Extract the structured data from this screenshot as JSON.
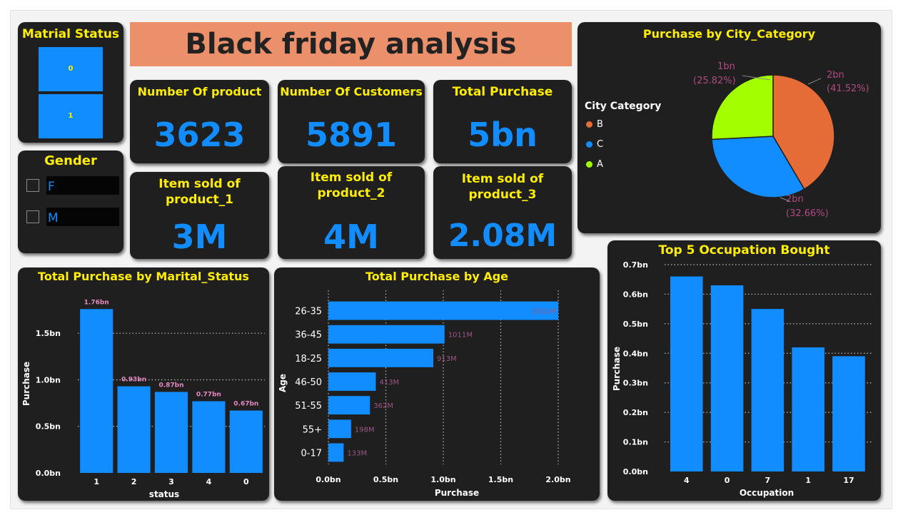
{
  "title": "Black friday analysis",
  "marital_slicer": {
    "title": "Matrial Status",
    "options": [
      "0",
      "1"
    ]
  },
  "gender_slicer": {
    "title": "Gender",
    "options": [
      "F",
      "M"
    ]
  },
  "kpis": [
    {
      "label": "Number Of product",
      "value": "3623"
    },
    {
      "label": "Number Of Customers",
      "value": "5891"
    },
    {
      "label": "Total Purchase",
      "value": "5bn"
    },
    {
      "label": "Item sold of\nproduct_1",
      "value": "3M"
    },
    {
      "label": "Item sold of\nproduct_2",
      "value": "4M"
    },
    {
      "label": "Item sold of\nproduct_3",
      "value": "2.08M"
    }
  ],
  "colors": {
    "accent": "#118dff",
    "title": "#ffee00",
    "card_bg": "#1f1f1f",
    "banner": "#ec8f6b",
    "pie_b": "#e66c37",
    "pie_c": "#118dff",
    "pie_a": "#a3ff00",
    "pie_label": "#b04a83"
  },
  "pie_chart": {
    "title": "Purchase by City_Category",
    "legend_title": "City Category",
    "chart_data": {
      "type": "pie",
      "categories": [
        "B",
        "C",
        "A"
      ],
      "values": [
        41.52,
        32.66,
        25.82
      ],
      "labels": [
        {
          "value": "2bn",
          "percent": "(41.52%)"
        },
        {
          "value": "2bn",
          "percent": "(32.66%)"
        },
        {
          "value": "1bn",
          "percent": "(25.82%)"
        }
      ],
      "legend_placement": "left"
    }
  },
  "marital_chart": {
    "title": "Total Purchase by Marital_Status",
    "chart_data": {
      "type": "bar",
      "categories": [
        "1",
        "2",
        "3",
        "4",
        "0"
      ],
      "values": [
        1.76,
        0.93,
        0.87,
        0.77,
        0.67
      ],
      "data_labels": [
        "1.76bn",
        "0.93bn",
        "0.87bn",
        "0.77bn",
        "0.67bn"
      ],
      "xlabel": "status",
      "ylabel": "Purchase",
      "yticks": [
        "0.0bn",
        "0.5bn",
        "1.0bn",
        "1.5bn"
      ],
      "ylim": [
        0,
        1.9
      ],
      "grid": true
    }
  },
  "age_chart": {
    "title": "Total Purchase by Age",
    "chart_data": {
      "type": "bar",
      "orientation": "horizontal",
      "categories": [
        "26-35",
        "36-45",
        "18-25",
        "46-50",
        "51-55",
        "55+",
        "0-17"
      ],
      "values": [
        2031,
        1011,
        913,
        413,
        362,
        198,
        133
      ],
      "data_labels": [
        "2031M",
        "1011M",
        "913M",
        "413M",
        "362M",
        "198M",
        "133M"
      ],
      "xlabel": "Purchase",
      "ylabel": "Age",
      "xticks": [
        "0.0bn",
        "0.5bn",
        "1.0bn",
        "1.5bn",
        "2.0bn"
      ],
      "xlim": [
        0,
        2000
      ],
      "grid": true
    }
  },
  "occupation_chart": {
    "title": "Top 5 Occupation Bought",
    "chart_data": {
      "type": "bar",
      "categories": [
        "4",
        "0",
        "7",
        "1",
        "17"
      ],
      "values": [
        0.66,
        0.63,
        0.55,
        0.42,
        0.39
      ],
      "xlabel": "Occupation",
      "ylabel": "Purchase",
      "yticks": [
        "0.0bn",
        "0.1bn",
        "0.2bn",
        "0.3bn",
        "0.4bn",
        "0.5bn",
        "0.6bn",
        "0.7bn"
      ],
      "ylim": [
        0,
        0.7
      ],
      "grid": true
    }
  }
}
